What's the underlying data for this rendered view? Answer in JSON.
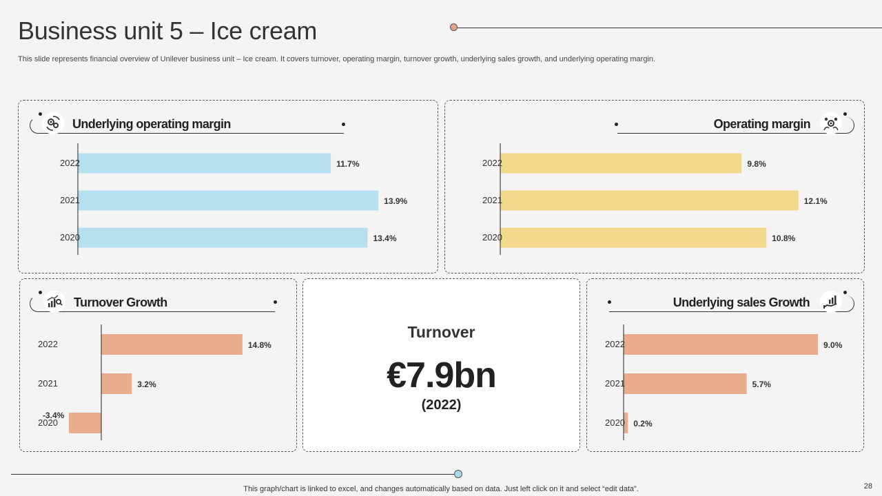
{
  "page": {
    "title": "Business unit 5 – Ice cream",
    "subtitle": "This slide represents financial overview of Unilever business unit – Ice cream. It covers turnover,  operating margin, turnover growth, underlying sales growth, and underlying operating margin.",
    "footnote": "This graph/chart is linked to excel,  and changes automatically based on data. Just left click on it and select “edit data”.",
    "page_number": "28"
  },
  "turnover": {
    "label": "Turnover",
    "value": "€7.9bn",
    "year": "(2022)"
  },
  "panels": {
    "uom": {
      "title": "Underlying operating margin",
      "icon": "gears-refresh-icon"
    },
    "om": {
      "title": "Operating margin",
      "icon": "gears-people-icon"
    },
    "tg": {
      "title": "Turnover Growth",
      "icon": "growth-chart-magnifier-icon"
    },
    "usg": {
      "title": "Underlying sales Growth",
      "icon": "hand-chart-icon"
    }
  },
  "colors": {
    "blue": "#b6dff0",
    "yellow": "#f2d88a",
    "orange": "#e9ac8f",
    "accent_dot": "#e9a58a",
    "bottom_dot": "#a9d8ea"
  },
  "chart_data": [
    {
      "id": "uom",
      "type": "bar",
      "orientation": "horizontal",
      "title": "Underlying operating margin",
      "categories": [
        "2022",
        "2021",
        "2020"
      ],
      "values": [
        11.7,
        13.9,
        13.4
      ],
      "labels": [
        "11.7%",
        "13.9%",
        "13.4%"
      ],
      "xlim": [
        0,
        14.5
      ],
      "color": "#b6dff0",
      "grid": false,
      "legend": "none"
    },
    {
      "id": "om",
      "type": "bar",
      "orientation": "horizontal",
      "title": "Operating margin",
      "categories": [
        "2022",
        "2021",
        "2020"
      ],
      "values": [
        9.8,
        12.1,
        10.8
      ],
      "labels": [
        "9.8%",
        "12.1%",
        "10.8%"
      ],
      "xlim": [
        0,
        13.2
      ],
      "color": "#f2d88a",
      "grid": false,
      "legend": "none"
    },
    {
      "id": "tg",
      "type": "bar",
      "orientation": "horizontal",
      "title": "Turnover Growth",
      "categories": [
        "2022",
        "2021",
        "2020"
      ],
      "values": [
        14.8,
        3.2,
        -3.4
      ],
      "labels": [
        "14.8%",
        "3.2%",
        "-3.4%"
      ],
      "xlim": [
        -4.2,
        19.5
      ],
      "color": "#e9ac8f",
      "grid": false,
      "legend": "none"
    },
    {
      "id": "usg",
      "type": "bar",
      "orientation": "horizontal",
      "title": "Underlying sales Growth",
      "categories": [
        "2022",
        "2021",
        "2020"
      ],
      "values": [
        9.0,
        5.7,
        0.2
      ],
      "labels": [
        "9.0%",
        "5.7%",
        "0.2%"
      ],
      "xlim": [
        0,
        9.7
      ],
      "color": "#e9ac8f",
      "grid": false,
      "legend": "none"
    }
  ]
}
